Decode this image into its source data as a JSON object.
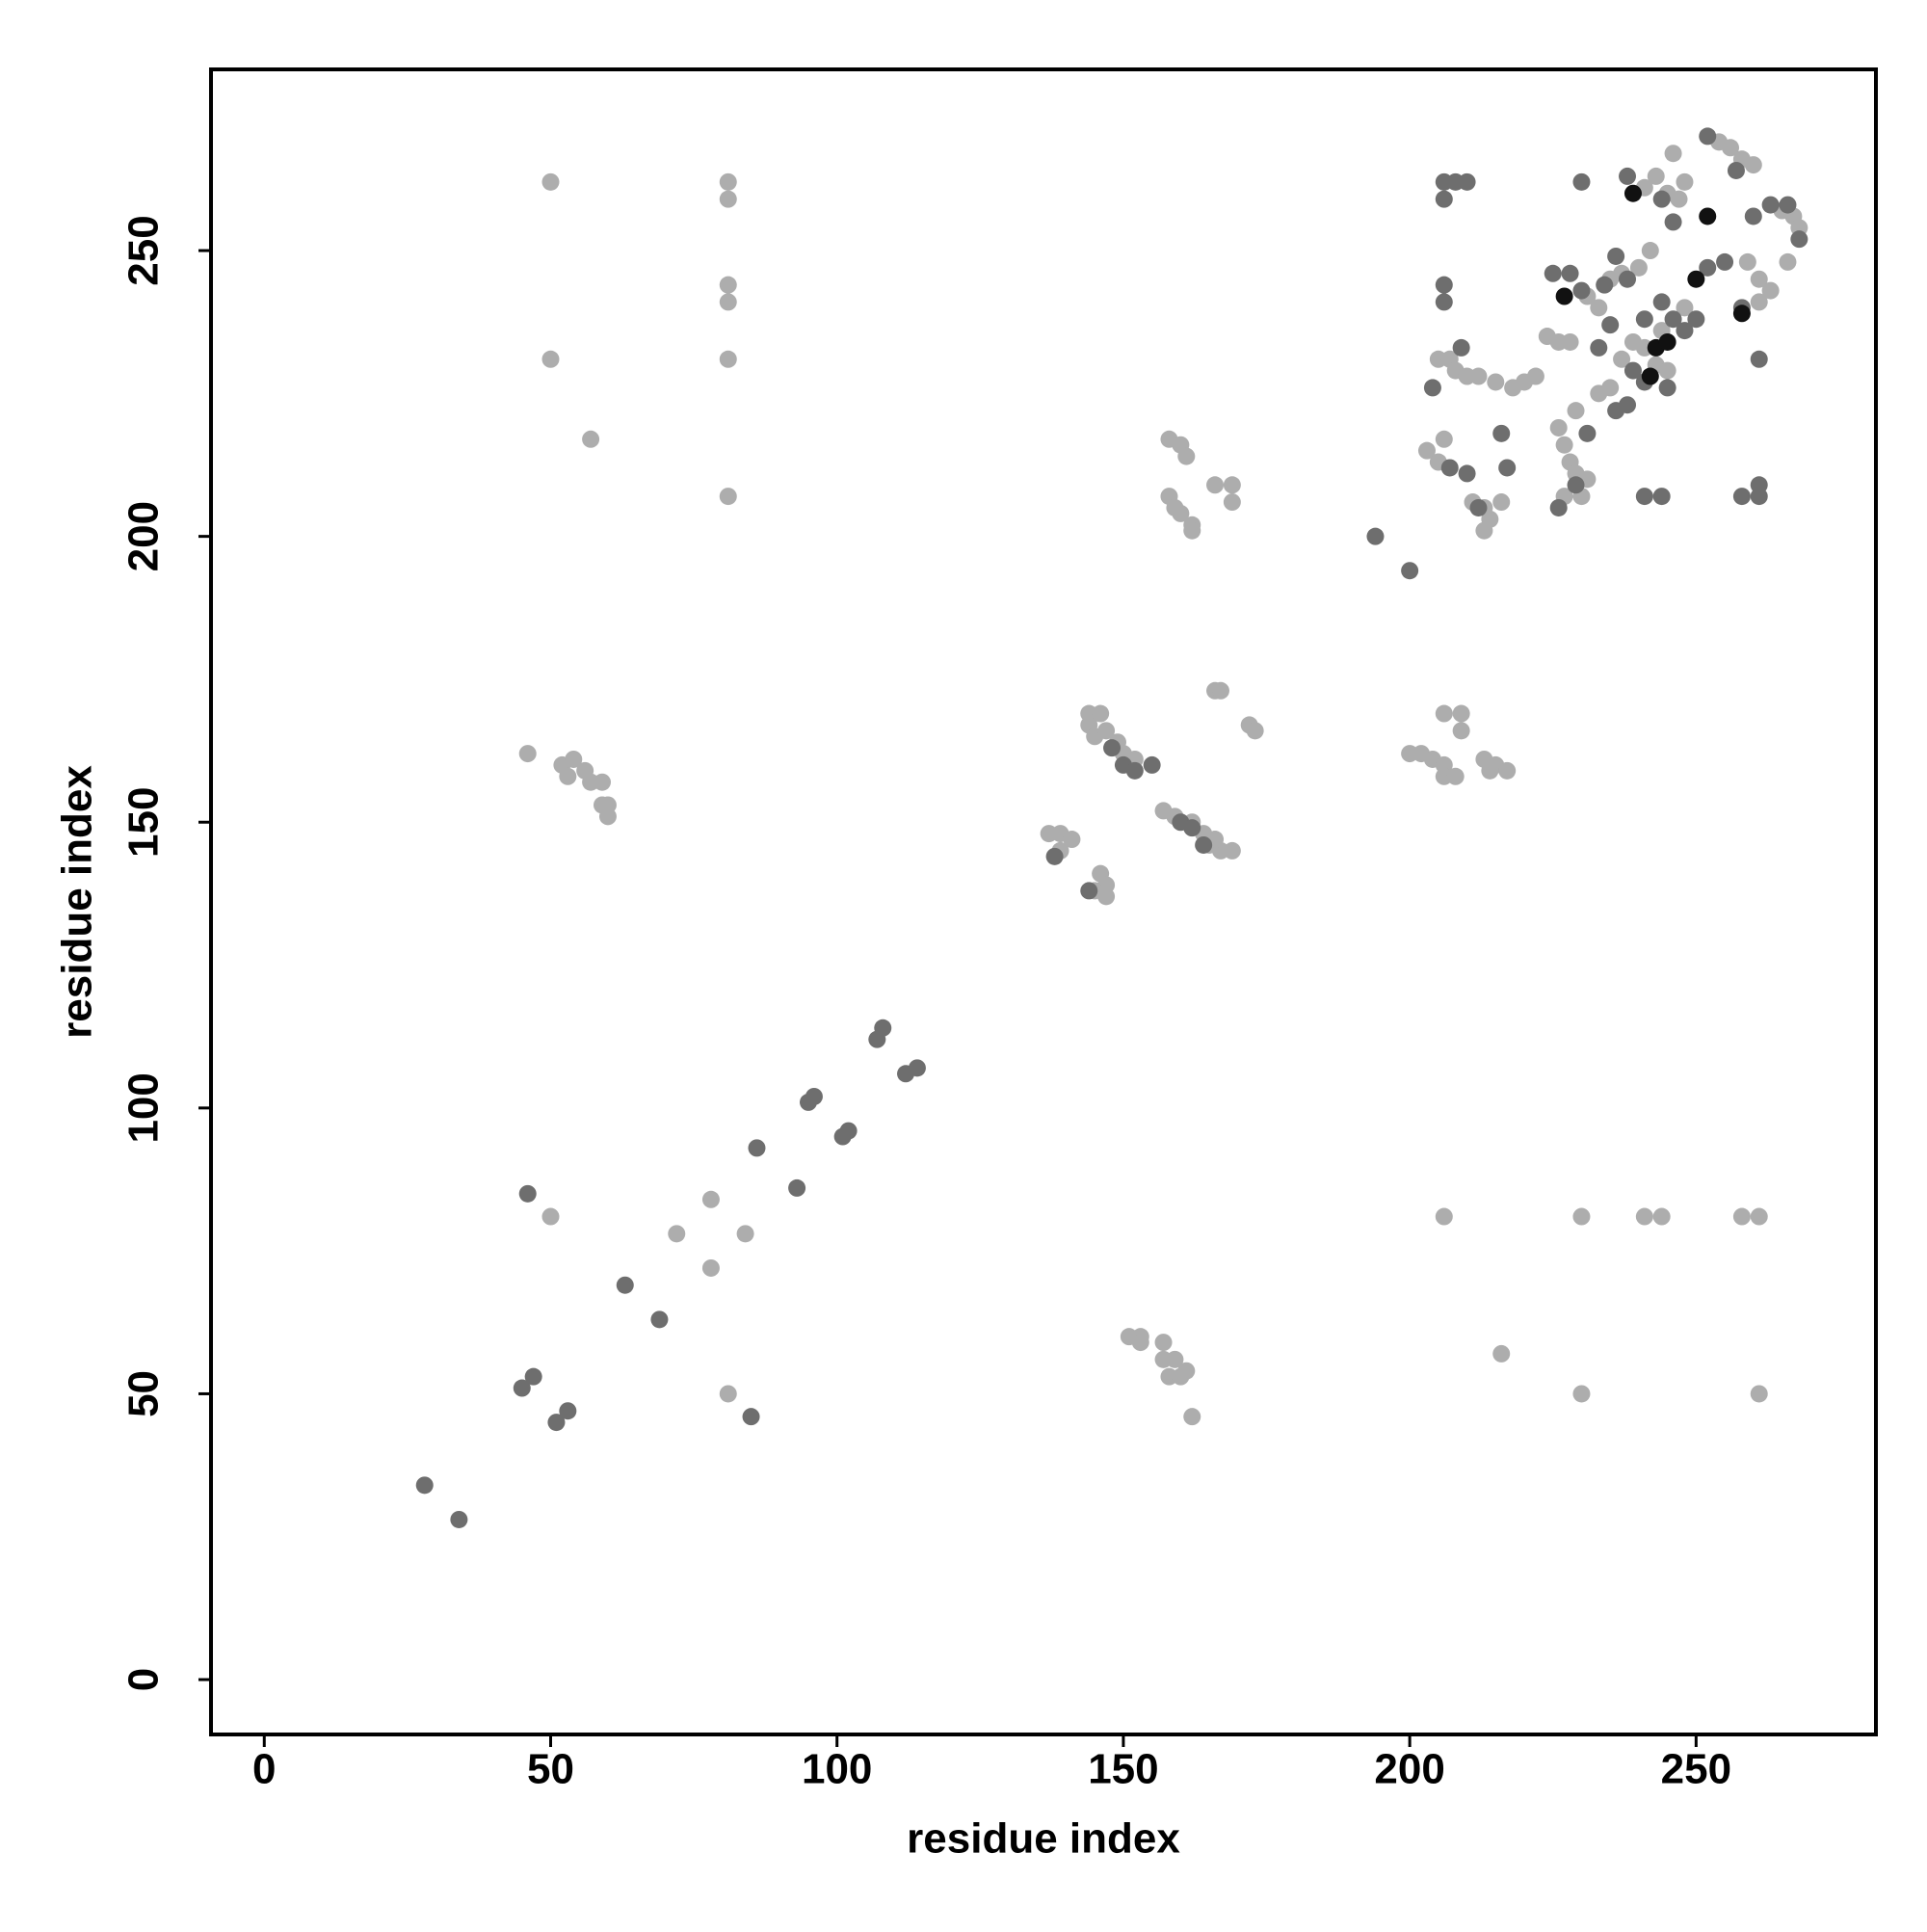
{
  "chart_data": {
    "type": "scatter",
    "xlabel": "residue index",
    "ylabel": "residue index",
    "xlim": [
      -9.3,
      281.4
    ],
    "ylim": [
      -9.6,
      281.7
    ],
    "xticks": [
      0,
      50,
      100,
      150,
      200,
      250
    ],
    "yticks": [
      0,
      50,
      100,
      150,
      200,
      250
    ],
    "series": [
      {
        "color": "#adadad",
        "x": [
          50,
          81,
          81,
          81,
          81,
          50,
          81,
          57,
          81,
          46,
          52,
          54,
          53,
          56,
          57,
          59,
          59,
          60,
          60,
          50,
          78,
          72,
          84,
          78,
          81,
          151,
          153,
          153,
          157,
          157,
          159,
          158,
          160,
          161,
          162,
          206,
          230,
          241,
          244,
          258,
          261,
          230,
          261,
          216,
          137,
          139,
          141,
          139,
          146,
          147,
          147,
          145,
          144,
          144,
          145,
          146,
          147,
          149,
          150,
          152,
          157,
          159,
          162,
          164,
          165,
          167,
          169,
          166,
          166,
          167,
          172,
          173,
          158,
          160,
          161,
          158,
          159,
          160,
          162,
          162,
          166,
          169,
          169,
          200,
          202,
          204,
          206,
          206,
          208,
          206,
          209,
          209,
          213,
          215,
          217,
          214,
          203,
          205,
          206,
          205,
          207,
          208,
          210,
          212,
          215,
          218,
          220,
          222,
          211,
          213,
          214,
          216,
          213,
          224,
          226,
          228,
          231,
          233,
          235,
          237,
          240,
          242,
          241,
          243,
          245,
          247,
          248,
          246,
          254,
          256,
          258,
          260,
          265,
          267,
          268,
          259,
          261,
          263,
          266,
          261,
          226,
          227,
          228,
          229,
          227,
          230,
          231,
          229,
          233,
          235,
          237,
          239,
          241,
          243,
          245,
          244,
          248
        ],
        "values": [
          262,
          262,
          259,
          244,
          241,
          231,
          231,
          217,
          207,
          162,
          160,
          161,
          158,
          159,
          157,
          157,
          153,
          153,
          151,
          81,
          84,
          78,
          78,
          72,
          50,
          60,
          60,
          59,
          59,
          56,
          56,
          53,
          53,
          54,
          46,
          81,
          81,
          81,
          81,
          81,
          81,
          50,
          50,
          57,
          148,
          148,
          147,
          145,
          141,
          139,
          137,
          138,
          169,
          167,
          165,
          169,
          166,
          164,
          162,
          161,
          152,
          151,
          150,
          148,
          146,
          145,
          145,
          147,
          173,
          173,
          167,
          166,
          217,
          216,
          214,
          207,
          205,
          204,
          202,
          201,
          209,
          209,
          206,
          162,
          162,
          161,
          160,
          158,
          158,
          169,
          169,
          166,
          161,
          160,
          159,
          159,
          215,
          213,
          217,
          231,
          231,
          229,
          228,
          228,
          227,
          226,
          227,
          228,
          206,
          205,
          203,
          206,
          201,
          235,
          234,
          234,
          242,
          240,
          245,
          246,
          247,
          250,
          261,
          263,
          260,
          259,
          262,
          267,
          269,
          268,
          266,
          265,
          257,
          256,
          254,
          248,
          245,
          243,
          248,
          241,
          219,
          216,
          213,
          211,
          207,
          207,
          210,
          222,
          225,
          226,
          231,
          234,
          233,
          230,
          229,
          236,
          240
        ]
      },
      {
        "color": "#6e6e6e",
        "x": [
          28,
          34,
          45,
          47,
          51,
          53,
          46,
          85,
          63,
          69,
          86,
          93,
          95,
          96,
          101,
          102,
          107,
          108,
          112,
          114,
          138,
          144,
          148,
          150,
          152,
          155,
          160,
          162,
          164,
          194,
          200,
          206,
          208,
          210,
          206,
          206,
          206,
          204,
          209,
          216,
          217,
          226,
          230,
          241,
          244,
          258,
          261,
          261,
          261,
          207,
          210,
          212,
          225,
          228,
          230,
          234,
          236,
          238,
          241,
          244,
          246,
          248,
          250,
          252,
          255,
          258,
          236,
          238,
          231,
          229,
          239,
          241,
          245,
          233,
          235,
          252,
          257,
          260,
          263,
          266,
          268,
          244,
          246,
          238
        ],
        "values": [
          34,
          28,
          51,
          53,
          45,
          47,
          85,
          46,
          69,
          63,
          93,
          86,
          101,
          102,
          95,
          96,
          112,
          114,
          106,
          107,
          144,
          138,
          163,
          160,
          159,
          160,
          150,
          149,
          146,
          200,
          194,
          262,
          262,
          262,
          259,
          244,
          241,
          226,
          233,
          218,
          212,
          205,
          262,
          207,
          207,
          207,
          207,
          209,
          231,
          212,
          211,
          205,
          246,
          246,
          243,
          244,
          249,
          245,
          238,
          241,
          238,
          236,
          238,
          247,
          248,
          240,
          222,
          223,
          218,
          209,
          229,
          227,
          226,
          233,
          237,
          270,
          264,
          256,
          258,
          258,
          252,
          259,
          255,
          263
        ]
      },
      {
        "color": "#111111",
        "x": [
          227,
          239,
          242,
          243,
          245,
          250,
          252,
          258
        ],
        "values": [
          242,
          260,
          228,
          233,
          234,
          245,
          256,
          239
        ]
      }
    ]
  }
}
